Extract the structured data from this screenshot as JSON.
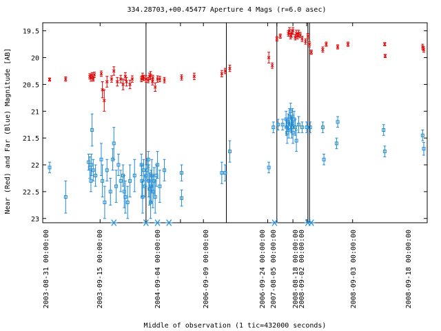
{
  "chart_data": {
    "type": "scatter",
    "title": "334.28703,+00.45477   Aperture 4 Mags (r=6.0 asec)",
    "xlabel": "Middle of observation (1 tic=432000 seconds)",
    "ylabel": "Near (Red) and Far (Blue) Magnitude [AB]",
    "ylim": [
      23.08,
      19.35
    ],
    "y_ticks": [
      19.5,
      20,
      20.5,
      21,
      21.5,
      22,
      22.5,
      23
    ],
    "y_tick_labels": [
      "19.5",
      "20",
      "20.5",
      "21",
      "21.5",
      "22",
      "22.5",
      "23"
    ],
    "x_tick_labels": [
      "2003-08-31 00:00:00",
      "2003-09-15 00:00:00",
      "2004-09-04 00:00:00",
      "2006-09-09 00:00:00",
      "2006-09-24 00:00:00",
      "2007-08-05 00:00:00",
      "2008-08-18 00:00:00",
      "2008-09-02 00:00:00",
      "2008-09-03 00:00:00",
      "2008-09-18 00:00:00"
    ],
    "grid": false,
    "legend": "none",
    "colors": {
      "near": "#e00000",
      "far": "#1f8ad6",
      "marker": "#1f8ad6",
      "axis": "#000000"
    },
    "series": [
      {
        "points": [
          [
            0.3,
            20.41,
            0.03
          ],
          [
            1.0,
            20.4,
            0.04
          ],
          [
            2.05,
            20.35,
            0.05
          ],
          [
            2.1,
            20.38,
            0.06
          ],
          [
            2.15,
            20.33,
            0.05
          ],
          [
            2.2,
            20.4,
            0.04
          ],
          [
            2.25,
            20.32,
            0.05
          ],
          [
            2.55,
            20.3,
            0.05
          ],
          [
            2.6,
            20.6,
            0.15
          ],
          [
            2.68,
            20.8,
            0.2
          ],
          [
            2.8,
            20.45,
            0.1
          ],
          [
            3.0,
            20.4,
            0.06
          ],
          [
            3.1,
            20.25,
            0.08
          ],
          [
            3.25,
            20.45,
            0.08
          ],
          [
            3.4,
            20.4,
            0.07
          ],
          [
            3.5,
            20.5,
            0.1
          ],
          [
            3.6,
            20.35,
            0.07
          ],
          [
            3.65,
            20.45,
            0.08
          ],
          [
            3.8,
            20.5,
            0.08
          ],
          [
            3.9,
            20.4,
            0.06
          ],
          [
            4.3,
            20.4,
            0.05
          ],
          [
            4.35,
            20.35,
            0.06
          ],
          [
            4.4,
            20.38,
            0.05
          ],
          [
            4.5,
            20.4,
            0.06
          ],
          [
            4.6,
            20.42,
            0.05
          ],
          [
            4.65,
            20.35,
            0.06
          ],
          [
            4.7,
            20.33,
            0.07
          ],
          [
            4.78,
            20.45,
            0.06
          ],
          [
            4.8,
            20.38,
            0.05
          ],
          [
            4.9,
            20.55,
            0.08
          ],
          [
            5.0,
            20.4,
            0.06
          ],
          [
            5.1,
            20.4,
            0.05
          ],
          [
            5.3,
            20.42,
            0.05
          ],
          [
            6.05,
            20.37,
            0.05
          ],
          [
            6.6,
            20.35,
            0.06
          ],
          [
            7.8,
            20.3,
            0.06
          ],
          [
            7.95,
            20.25,
            0.05
          ],
          [
            8.15,
            20.2,
            0.06
          ],
          [
            9.85,
            20.0,
            0.1
          ],
          [
            10.0,
            20.15,
            0.05
          ],
          [
            10.2,
            19.65,
            0.04
          ],
          [
            10.35,
            19.6,
            0.04
          ],
          [
            10.7,
            19.55,
            0.05
          ],
          [
            10.75,
            19.5,
            0.06
          ],
          [
            10.8,
            19.6,
            0.05
          ],
          [
            10.85,
            19.55,
            0.07
          ],
          [
            10.9,
            19.5,
            0.06
          ],
          [
            11.0,
            19.62,
            0.05
          ],
          [
            11.05,
            19.55,
            0.06
          ],
          [
            11.1,
            19.6,
            0.05
          ],
          [
            11.15,
            19.55,
            0.06
          ],
          [
            11.22,
            19.58,
            0.05
          ],
          [
            11.3,
            19.65,
            0.05
          ],
          [
            11.45,
            19.7,
            0.05
          ],
          [
            11.55,
            19.6,
            0.05
          ],
          [
            11.62,
            19.75,
            0.05
          ],
          [
            11.7,
            19.9,
            0.04
          ],
          [
            12.2,
            19.85,
            0.05
          ],
          [
            12.35,
            19.75,
            0.04
          ],
          [
            12.85,
            19.8,
            0.04
          ],
          [
            13.3,
            19.75,
            0.04
          ],
          [
            14.9,
            19.75,
            0.03
          ],
          [
            14.92,
            19.97,
            0.03
          ],
          [
            16.55,
            19.8,
            0.05
          ],
          [
            16.6,
            19.85,
            0.05
          ]
        ]
      },
      {
        "points": [
          [
            0.3,
            22.05,
            0.1
          ],
          [
            1.0,
            22.6,
            0.3
          ],
          [
            2.0,
            21.95,
            0.15
          ],
          [
            2.05,
            22.05,
            0.2
          ],
          [
            2.1,
            22.3,
            0.2
          ],
          [
            2.12,
            22.0,
            0.2
          ],
          [
            2.15,
            21.35,
            0.3
          ],
          [
            2.2,
            22.1,
            0.2
          ],
          [
            2.3,
            22.2,
            0.2
          ],
          [
            2.55,
            21.9,
            0.3
          ],
          [
            2.6,
            22.3,
            0.3
          ],
          [
            2.7,
            22.7,
            0.3
          ],
          [
            2.8,
            22.1,
            0.2
          ],
          [
            2.95,
            22.5,
            0.25
          ],
          [
            3.05,
            21.9,
            0.2
          ],
          [
            3.1,
            21.6,
            0.3
          ],
          [
            3.2,
            22.4,
            0.3
          ],
          [
            3.3,
            22.0,
            0.2
          ],
          [
            3.4,
            22.3,
            0.2
          ],
          [
            3.5,
            22.2,
            0.2
          ],
          [
            3.55,
            22.5,
            0.3
          ],
          [
            3.6,
            22.6,
            0.3
          ],
          [
            3.7,
            22.7,
            0.3
          ],
          [
            3.8,
            22.3,
            0.3
          ],
          [
            4.0,
            22.2,
            0.3
          ],
          [
            4.3,
            22.0,
            0.2
          ],
          [
            4.32,
            22.3,
            0.3
          ],
          [
            4.35,
            22.6,
            0.3
          ],
          [
            4.4,
            22.1,
            0.2
          ],
          [
            4.45,
            22.4,
            0.2
          ],
          [
            4.5,
            22.2,
            0.2
          ],
          [
            4.55,
            22.1,
            0.2
          ],
          [
            4.6,
            21.9,
            0.15
          ],
          [
            4.62,
            22.3,
            0.3
          ],
          [
            4.65,
            22.45,
            0.3
          ],
          [
            4.7,
            22.7,
            0.3
          ],
          [
            4.72,
            22.4,
            0.3
          ],
          [
            4.75,
            22.2,
            0.3
          ],
          [
            4.8,
            22.5,
            0.3
          ],
          [
            4.85,
            22.3,
            0.25
          ],
          [
            4.9,
            22.6,
            0.3
          ],
          [
            4.95,
            22.2,
            0.2
          ],
          [
            5.0,
            22.0,
            0.25
          ],
          [
            5.1,
            22.4,
            0.3
          ],
          [
            5.3,
            22.1,
            0.2
          ],
          [
            6.05,
            22.15,
            0.15
          ],
          [
            6.05,
            22.62,
            0.15
          ],
          [
            7.8,
            22.15,
            0.2
          ],
          [
            7.95,
            22.15,
            0.15
          ],
          [
            8.15,
            21.75,
            0.2
          ],
          [
            9.85,
            22.05,
            0.1
          ],
          [
            10.05,
            21.3,
            0.1
          ],
          [
            10.25,
            21.25,
            0.1
          ],
          [
            10.45,
            21.25,
            0.1
          ],
          [
            10.6,
            21.15,
            0.15
          ],
          [
            10.62,
            21.3,
            0.15
          ],
          [
            10.65,
            21.4,
            0.2
          ],
          [
            10.7,
            21.2,
            0.15
          ],
          [
            10.72,
            21.35,
            0.15
          ],
          [
            10.75,
            21.1,
            0.15
          ],
          [
            10.8,
            21.0,
            0.15
          ],
          [
            10.82,
            21.25,
            0.15
          ],
          [
            10.85,
            21.3,
            0.2
          ],
          [
            10.88,
            21.1,
            0.15
          ],
          [
            10.9,
            21.4,
            0.2
          ],
          [
            10.95,
            21.15,
            0.15
          ],
          [
            11.0,
            21.3,
            0.15
          ],
          [
            11.05,
            21.55,
            0.2
          ],
          [
            11.15,
            21.25,
            0.15
          ],
          [
            11.3,
            21.3,
            0.1
          ],
          [
            11.5,
            21.3,
            0.1
          ],
          [
            11.65,
            21.3,
            0.1
          ],
          [
            12.2,
            21.3,
            0.1
          ],
          [
            12.25,
            21.9,
            0.1
          ],
          [
            12.8,
            21.6,
            0.1
          ],
          [
            12.85,
            21.2,
            0.1
          ],
          [
            14.85,
            21.35,
            0.1
          ],
          [
            14.9,
            21.75,
            0.1
          ],
          [
            16.55,
            21.45,
            0.1
          ],
          [
            16.6,
            21.7,
            0.12
          ]
        ]
      }
    ],
    "epoch_boundaries": [
      2.5,
      4.5,
      6.0,
      7.0,
      8.0,
      9.8,
      10.2,
      10.9,
      11.5,
      13.5
    ],
    "vertical_lines": [
      4.5,
      8.0,
      10.2,
      11.55,
      11.62
    ],
    "bottom_markers": [
      3.1,
      4.5,
      5.0,
      5.5,
      10.1,
      11.55,
      11.7
    ]
  }
}
